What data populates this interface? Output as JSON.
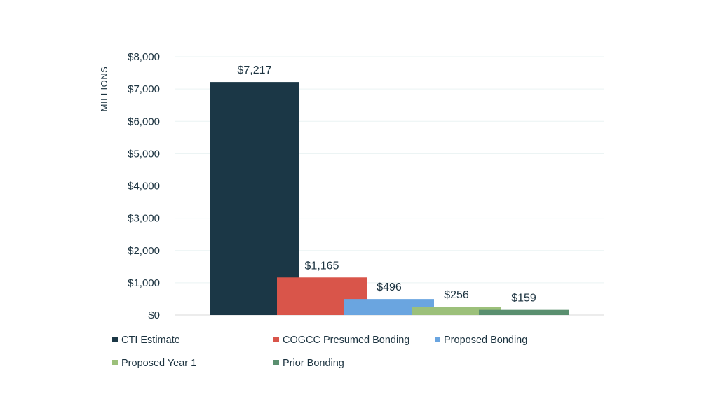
{
  "chart_data": {
    "type": "bar",
    "title": "",
    "xlabel": "",
    "ylabel": "MILLIONS",
    "ylim": [
      0,
      8000
    ],
    "yticks": [
      0,
      1000,
      2000,
      3000,
      4000,
      5000,
      6000,
      7000,
      8000
    ],
    "ytick_labels": [
      "$0",
      "$1,000",
      "$2,000",
      "$3,000",
      "$4,000",
      "$5,000",
      "$6,000",
      "$7,000",
      "$8,000"
    ],
    "grid": true,
    "legend_position": "bottom",
    "series": [
      {
        "name": "CTI Estimate",
        "value": 7217,
        "label": "$7,217",
        "color": "#1b3746"
      },
      {
        "name": "COGCC Presumed Bonding",
        "value": 1165,
        "label": "$1,165",
        "color": "#d9554a"
      },
      {
        "name": "Proposed Bonding",
        "value": 496,
        "label": "$496",
        "color": "#6aa5e0"
      },
      {
        "name": "Proposed Year 1",
        "value": 256,
        "label": "$256",
        "color": "#9cc07a"
      },
      {
        "name": "Prior Bonding",
        "value": 159,
        "label": "$159",
        "color": "#5a8f6f"
      }
    ]
  }
}
